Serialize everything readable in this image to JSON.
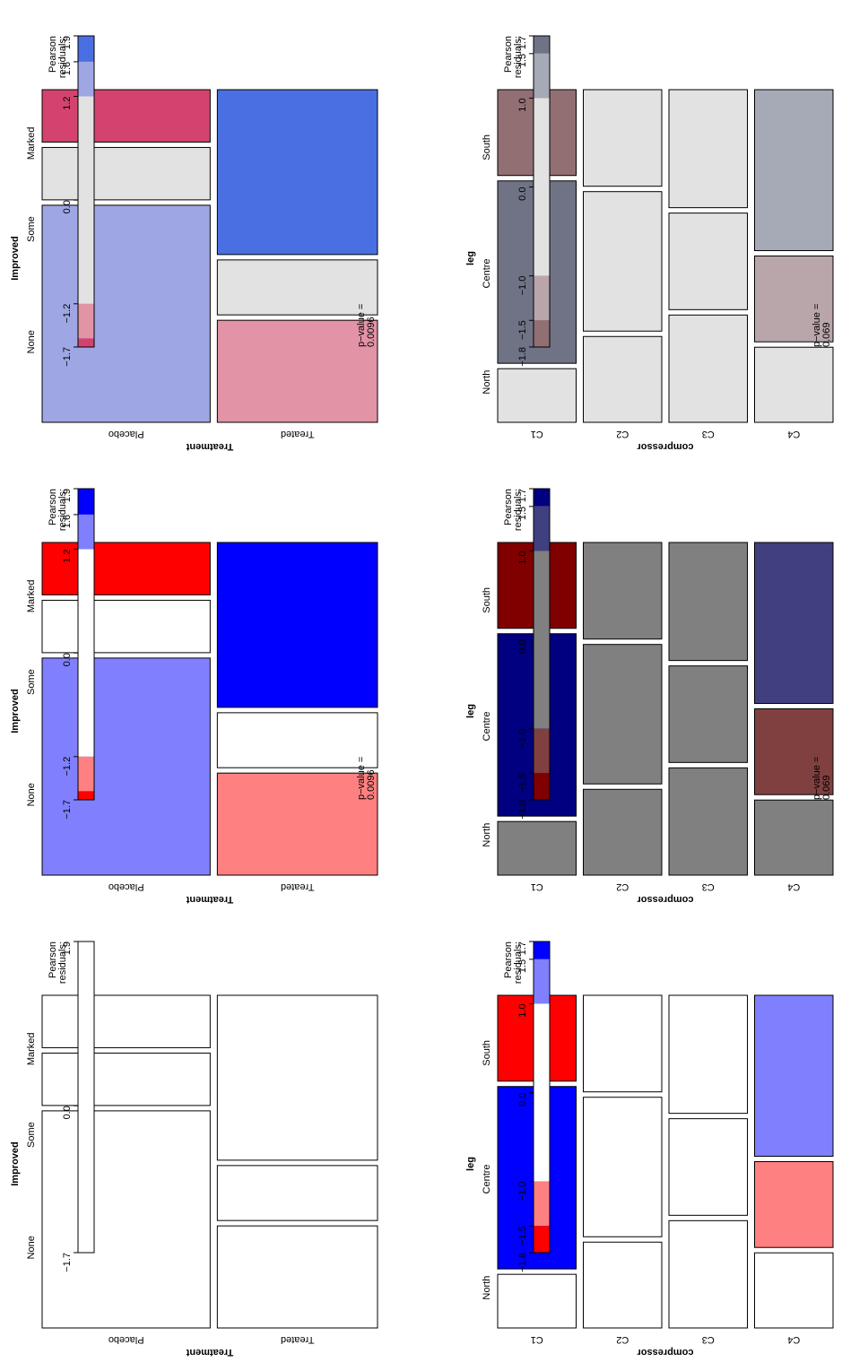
{
  "chart_data": [
    {
      "type": "mosaic",
      "shading": "none",
      "row_variable": "Treatment",
      "col_variable": "Improved",
      "rows": [
        "Placebo",
        "Treated"
      ],
      "cols": [
        "None",
        "Some",
        "Marked"
      ],
      "counts": [
        [
          29,
          7,
          7
        ],
        [
          13,
          7,
          21
        ]
      ],
      "cell_colors": [
        [
          "#ffffff",
          "#ffffff",
          "#ffffff"
        ],
        [
          "#ffffff",
          "#ffffff",
          "#ffffff"
        ]
      ],
      "legend": {
        "title_lines": [
          "Pearson",
          "residuals:"
        ],
        "bands": [
          {
            "from": 1.9,
            "to": -1.7,
            "color": "#ffffff"
          }
        ],
        "ticks": [
          {
            "value": 1.9,
            "label": "1.9"
          },
          {
            "value": 0.0,
            "label": "0.0"
          },
          {
            "value": -1.7,
            "label": "−1.7"
          }
        ],
        "pvalue_lines": []
      }
    },
    {
      "type": "mosaic",
      "shading": "hcl-interval",
      "row_variable": "Treatment",
      "col_variable": "Improved",
      "rows": [
        "Placebo",
        "Treated"
      ],
      "cols": [
        "None",
        "Some",
        "Marked"
      ],
      "counts": [
        [
          29,
          7,
          7
        ],
        [
          13,
          7,
          21
        ]
      ],
      "cell_colors": [
        [
          "#8080ff",
          "#ffffff",
          "#ff0000"
        ],
        [
          "#ff8080",
          "#ffffff",
          "#0000ff"
        ]
      ],
      "legend": {
        "title_lines": [
          "Pearson",
          "residuals:"
        ],
        "bands": [
          {
            "from": 1.9,
            "to": 1.6,
            "color": "#0000ff"
          },
          {
            "from": 1.6,
            "to": 1.2,
            "color": "#8080ff"
          },
          {
            "from": 1.2,
            "to": -1.2,
            "color": "#ffffff"
          },
          {
            "from": -1.2,
            "to": -1.6,
            "color": "#ff8080"
          },
          {
            "from": -1.6,
            "to": -1.7,
            "color": "#ff0000"
          }
        ],
        "ticks": [
          {
            "value": 1.9,
            "label": "1.9"
          },
          {
            "value": 1.6,
            "label": "1.6"
          },
          {
            "value": 1.2,
            "label": "1.2"
          },
          {
            "value": 0.0,
            "label": "0.0"
          },
          {
            "value": -1.2,
            "label": "−1.2"
          },
          {
            "value": -1.7,
            "label": "−1.7"
          }
        ],
        "pvalue_lines": [
          "p−value =",
          "0.0096"
        ]
      }
    },
    {
      "type": "mosaic",
      "shading": "shading-max",
      "row_variable": "Treatment",
      "col_variable": "Improved",
      "rows": [
        "Placebo",
        "Treated"
      ],
      "cols": [
        "None",
        "Some",
        "Marked"
      ],
      "counts": [
        [
          29,
          7,
          7
        ],
        [
          13,
          7,
          21
        ]
      ],
      "cell_colors": [
        [
          "#9ea7e3",
          "#e2e2e2",
          "#d4436f"
        ],
        [
          "#e293a6",
          "#e2e2e2",
          "#4a6fe3"
        ]
      ],
      "legend": {
        "title_lines": [
          "Pearson",
          "residuals:"
        ],
        "bands": [
          {
            "from": 1.9,
            "to": 1.6,
            "color": "#4a6fe3"
          },
          {
            "from": 1.6,
            "to": 1.2,
            "color": "#9ea7e3"
          },
          {
            "from": 1.2,
            "to": -1.2,
            "color": "#e2e2e2"
          },
          {
            "from": -1.2,
            "to": -1.6,
            "color": "#e293a6"
          },
          {
            "from": -1.6,
            "to": -1.7,
            "color": "#d4436f"
          }
        ],
        "ticks": [
          {
            "value": 1.9,
            "label": "1.9"
          },
          {
            "value": 1.6,
            "label": "1.6"
          },
          {
            "value": 1.2,
            "label": "1.2"
          },
          {
            "value": 0.0,
            "label": "0.0"
          },
          {
            "value": -1.2,
            "label": "−1.2"
          },
          {
            "value": -1.7,
            "label": "−1.7"
          }
        ],
        "pvalue_lines": [
          "p−value =",
          "0.0096"
        ]
      }
    },
    {
      "type": "mosaic",
      "shading": "hcl-interval",
      "row_variable": "compressor",
      "col_variable": "leg",
      "rows": [
        "C1",
        "C2",
        "C3",
        "C4"
      ],
      "cols": [
        "North",
        "Centre",
        "South"
      ],
      "counts": [
        [
          5,
          17,
          8
        ],
        [
          8,
          13,
          9
        ],
        [
          10,
          9,
          11
        ],
        [
          7,
          8,
          15
        ]
      ],
      "cell_colors": [
        [
          "#ffffff",
          "#0000ff",
          "#ff0000"
        ],
        [
          "#ffffff",
          "#ffffff",
          "#ffffff"
        ],
        [
          "#ffffff",
          "#ffffff",
          "#ffffff"
        ],
        [
          "#ffffff",
          "#ff8080",
          "#8080ff"
        ]
      ],
      "legend": {
        "title_lines": [
          "Pearson",
          "residuals:"
        ],
        "bands": [
          {
            "from": 1.7,
            "to": 1.5,
            "color": "#0000ff"
          },
          {
            "from": 1.5,
            "to": 1.0,
            "color": "#8080ff"
          },
          {
            "from": 1.0,
            "to": -1.0,
            "color": "#ffffff"
          },
          {
            "from": -1.0,
            "to": -1.5,
            "color": "#ff8080"
          },
          {
            "from": -1.5,
            "to": -1.8,
            "color": "#ff0000"
          }
        ],
        "ticks": [
          {
            "value": 1.7,
            "label": "1.7"
          },
          {
            "value": 1.5,
            "label": "1.5"
          },
          {
            "value": 1.0,
            "label": "1.0"
          },
          {
            "value": 0.0,
            "label": "0.0"
          },
          {
            "value": -1.0,
            "label": "−1.0"
          },
          {
            "value": -1.5,
            "label": "−1.5"
          },
          {
            "value": -1.8,
            "label": "−1.8"
          }
        ],
        "pvalue_lines": []
      }
    },
    {
      "type": "mosaic",
      "shading": "dark",
      "row_variable": "compressor",
      "col_variable": "leg",
      "rows": [
        "C1",
        "C2",
        "C3",
        "C4"
      ],
      "cols": [
        "North",
        "Centre",
        "South"
      ],
      "counts": [
        [
          5,
          17,
          8
        ],
        [
          8,
          13,
          9
        ],
        [
          10,
          9,
          11
        ],
        [
          7,
          8,
          15
        ]
      ],
      "cell_colors": [
        [
          "#808080",
          "#000080",
          "#800000"
        ],
        [
          "#808080",
          "#808080",
          "#808080"
        ],
        [
          "#808080",
          "#808080",
          "#808080"
        ],
        [
          "#808080",
          "#804040",
          "#404080"
        ]
      ],
      "legend": {
        "title_lines": [
          "Pearson",
          "residuals:"
        ],
        "bands": [
          {
            "from": 1.7,
            "to": 1.5,
            "color": "#000080"
          },
          {
            "from": 1.5,
            "to": 1.0,
            "color": "#404080"
          },
          {
            "from": 1.0,
            "to": -1.0,
            "color": "#808080"
          },
          {
            "from": -1.0,
            "to": -1.5,
            "color": "#804040"
          },
          {
            "from": -1.5,
            "to": -1.8,
            "color": "#800000"
          }
        ],
        "ticks": [
          {
            "value": 1.7,
            "label": "1.7"
          },
          {
            "value": 1.5,
            "label": "1.5"
          },
          {
            "value": 1.0,
            "label": "1.0"
          },
          {
            "value": 0.0,
            "label": "0.0"
          },
          {
            "value": -1.0,
            "label": "−1.0"
          },
          {
            "value": -1.5,
            "label": "−1.5"
          },
          {
            "value": -1.8,
            "label": "−1.8"
          }
        ],
        "pvalue_lines": [
          "p−value =",
          "0.069"
        ]
      }
    },
    {
      "type": "mosaic",
      "shading": "muted",
      "row_variable": "compressor",
      "col_variable": "leg",
      "rows": [
        "C1",
        "C2",
        "C3",
        "C4"
      ],
      "cols": [
        "North",
        "Centre",
        "South"
      ],
      "counts": [
        [
          5,
          17,
          8
        ],
        [
          8,
          13,
          9
        ],
        [
          10,
          9,
          11
        ],
        [
          7,
          8,
          15
        ]
      ],
      "cell_colors": [
        [
          "#e2e2e2",
          "#6f7385",
          "#926f73"
        ],
        [
          "#e2e2e2",
          "#e2e2e2",
          "#e2e2e2"
        ],
        [
          "#e2e2e2",
          "#e2e2e2",
          "#e2e2e2"
        ],
        [
          "#e2e2e2",
          "#b9a6aa",
          "#a6a9b6"
        ]
      ],
      "legend": {
        "title_lines": [
          "Pearson",
          "residuals:"
        ],
        "bands": [
          {
            "from": 1.7,
            "to": 1.5,
            "color": "#6f7385"
          },
          {
            "from": 1.5,
            "to": 1.0,
            "color": "#a6a9b6"
          },
          {
            "from": 1.0,
            "to": -1.0,
            "color": "#e2e2e2"
          },
          {
            "from": -1.0,
            "to": -1.5,
            "color": "#b9a6aa"
          },
          {
            "from": -1.5,
            "to": -1.8,
            "color": "#926f73"
          }
        ],
        "ticks": [
          {
            "value": 1.7,
            "label": "1.7"
          },
          {
            "value": 1.5,
            "label": "1.5"
          },
          {
            "value": 1.0,
            "label": "1.0"
          },
          {
            "value": 0.0,
            "label": "0.0"
          },
          {
            "value": -1.0,
            "label": "−1.0"
          },
          {
            "value": -1.5,
            "label": "−1.5"
          },
          {
            "value": -1.8,
            "label": "−1.8"
          }
        ],
        "pvalue_lines": [
          "p−value =",
          "0.069"
        ]
      }
    }
  ]
}
